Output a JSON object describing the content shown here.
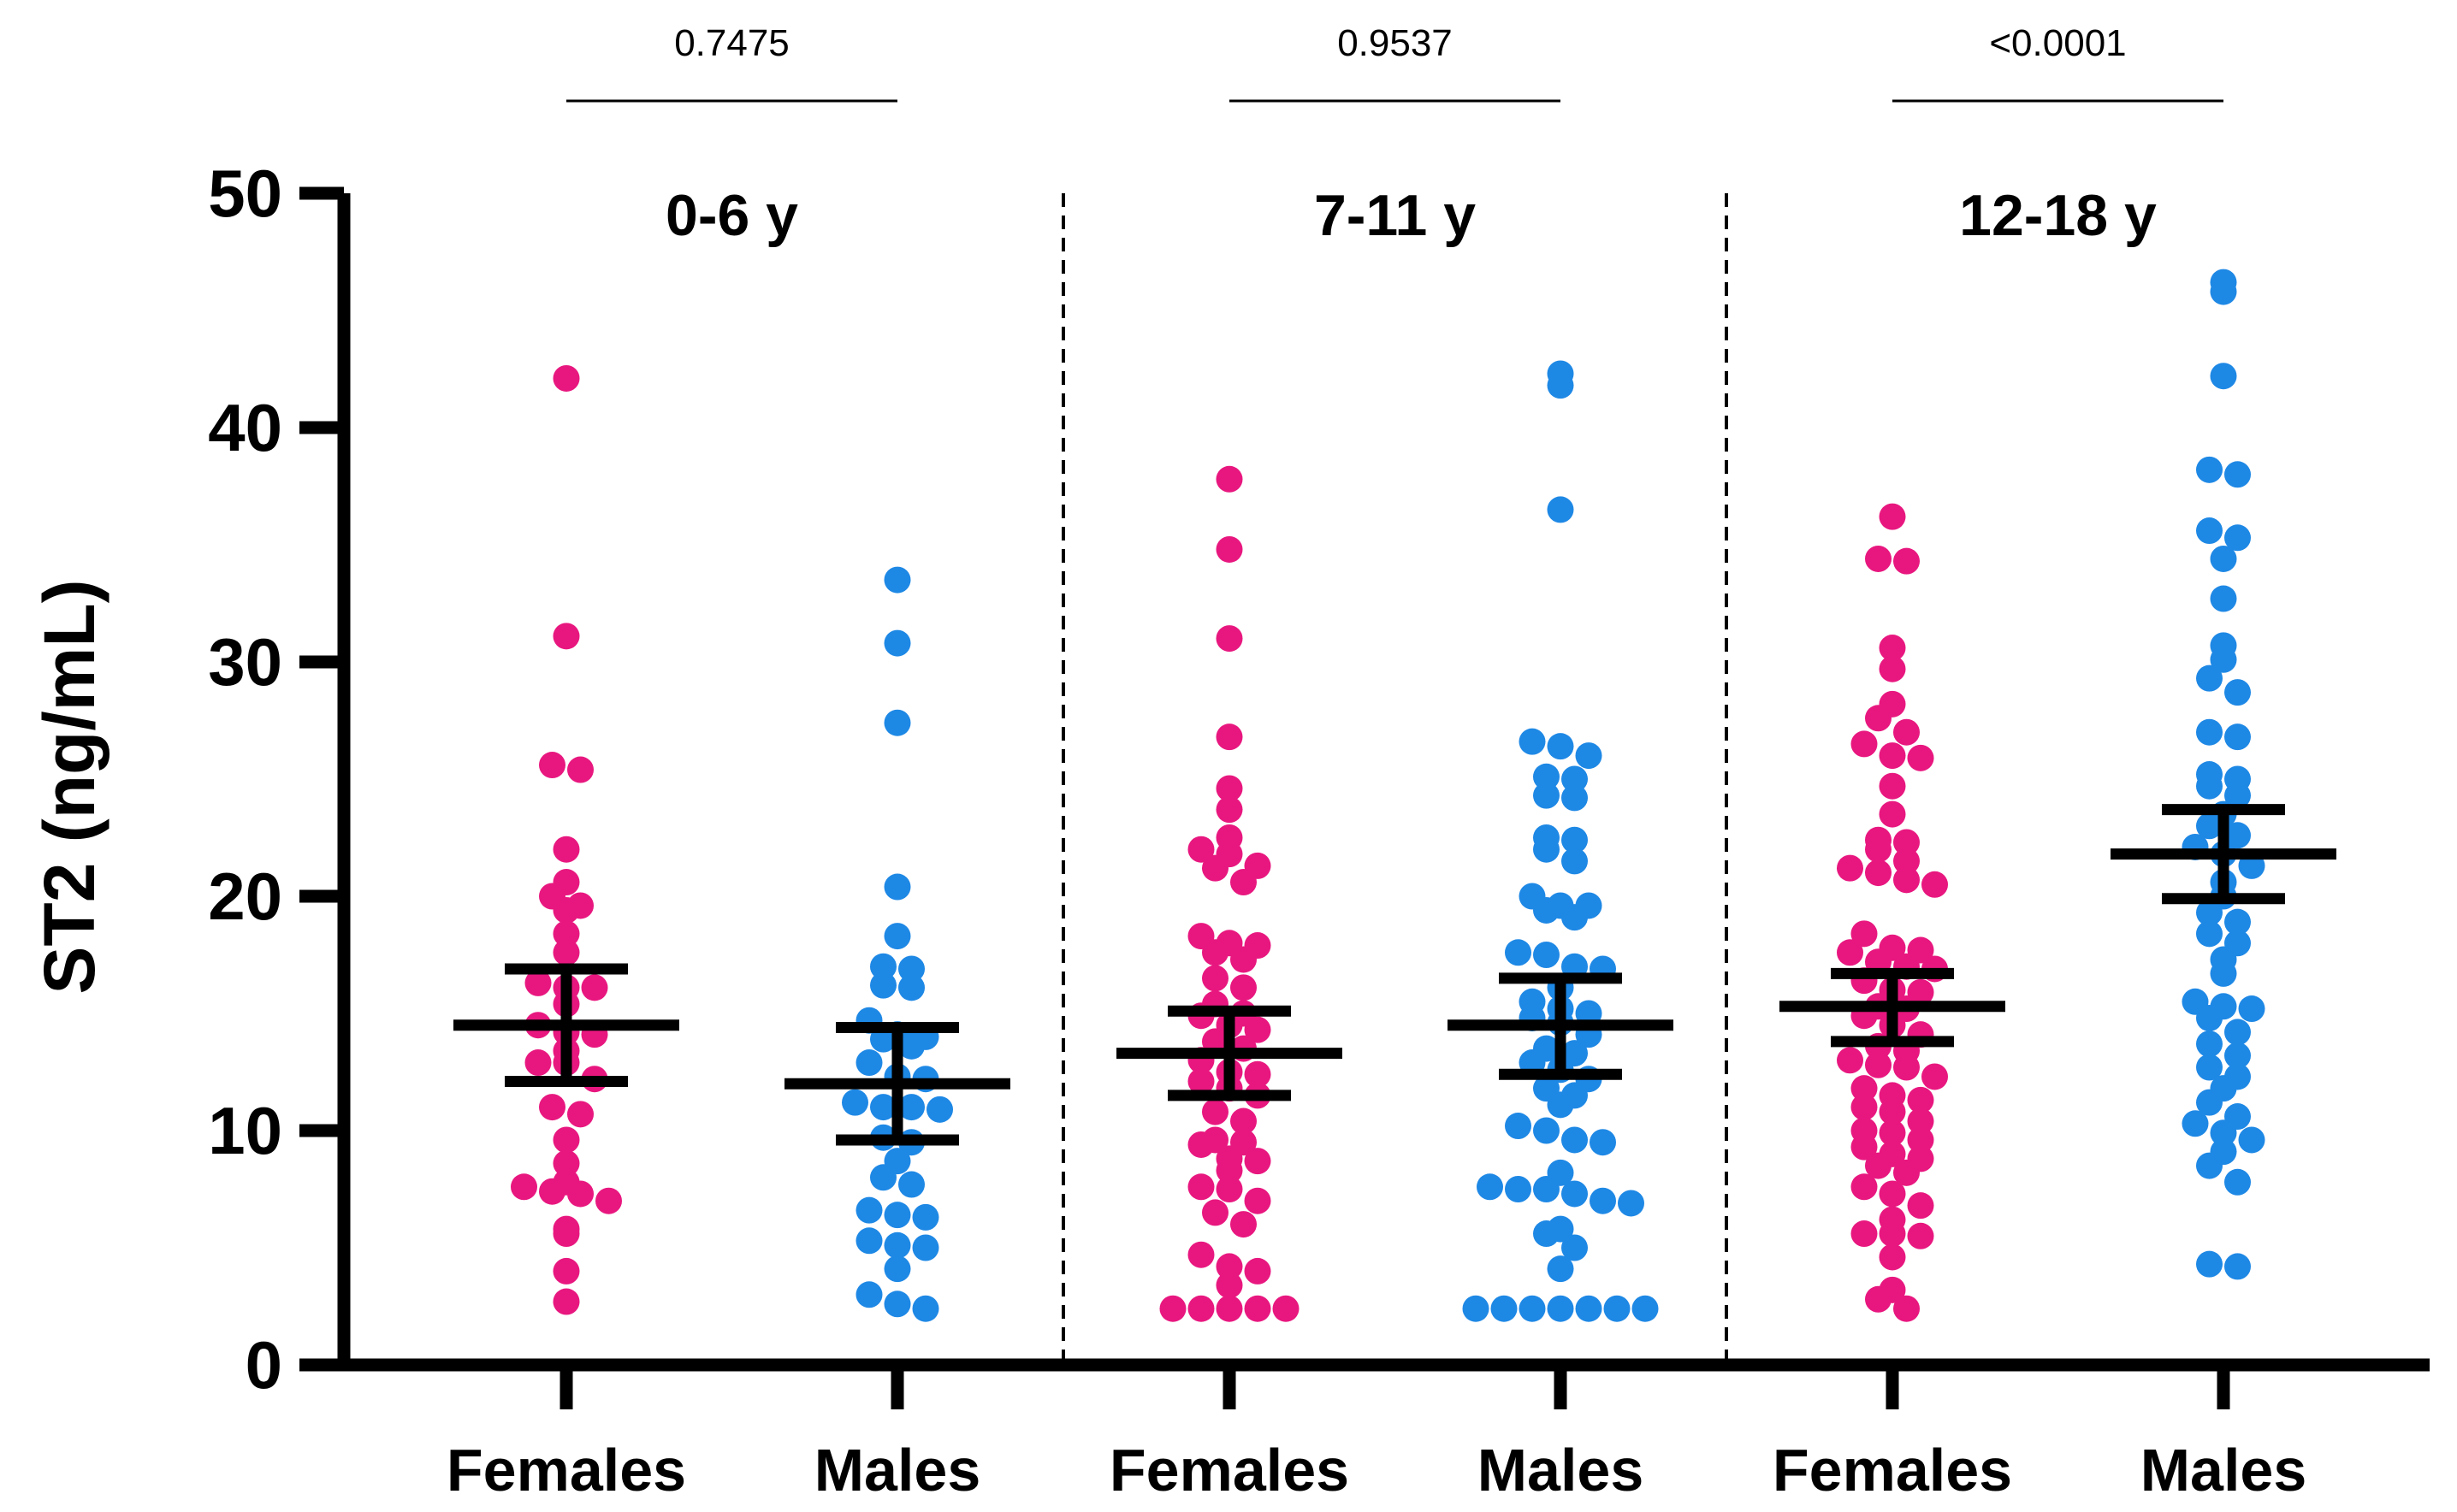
{
  "chart_data": {
    "type": "scatter",
    "subtype": "grouped dot plot with mean and 95% CI",
    "ylabel": "ST2 (ng/mL)",
    "ylim": [
      0,
      50
    ],
    "yticks": [
      0,
      10,
      20,
      30,
      40,
      50
    ],
    "groups": [
      {
        "label": "0-6 y",
        "p_value": "0.7475"
      },
      {
        "label": "7-11 y",
        "p_value": "0.9537"
      },
      {
        "label": "12-18 y",
        "p_value": "<0.0001"
      }
    ],
    "categories": [
      "Females",
      "Males",
      "Females",
      "Males",
      "Females",
      "Males"
    ],
    "colors": {
      "Females": "#E8177F",
      "Males": "#1E88E5",
      "summary": "#000000"
    },
    "series": [
      {
        "name": "Females",
        "group": "0-6 y",
        "mean": 14.5,
        "ci": [
          12.1,
          16.9
        ],
        "values": [
          42.1,
          31.1,
          25.6,
          25.4,
          22.0,
          20.6,
          20.0,
          19.6,
          19.4,
          18.4,
          17.6,
          16.3,
          16.1,
          16.1,
          15.4,
          14.5,
          14.2,
          14.1,
          13.4,
          12.9,
          12.9,
          12.2,
          11.0,
          10.7,
          9.6,
          8.6,
          7.8,
          7.6,
          7.4,
          7.3,
          7.0,
          5.8,
          5.6,
          4.0,
          2.7
        ]
      },
      {
        "name": "Males",
        "group": "0-6 y",
        "mean": 12.0,
        "ci": [
          9.6,
          14.4
        ],
        "values": [
          33.5,
          30.8,
          27.4,
          20.4,
          18.3,
          17.0,
          16.9,
          16.2,
          16.1,
          14.7,
          14.1,
          14.0,
          13.9,
          13.6,
          12.9,
          12.3,
          12.2,
          11.2,
          11.0,
          11.0,
          10.9,
          9.7,
          9.5,
          8.7,
          8.0,
          7.7,
          6.6,
          6.4,
          6.3,
          5.3,
          5.1,
          5.0,
          4.1,
          3.0,
          2.6,
          2.4
        ]
      },
      {
        "name": "Females",
        "group": "7-11 y",
        "mean": 13.3,
        "ci": [
          11.5,
          15.1
        ],
        "values": [
          37.8,
          34.8,
          31.0,
          26.8,
          24.6,
          23.7,
          22.5,
          22.0,
          21.8,
          21.3,
          21.2,
          20.6,
          18.3,
          18.0,
          17.9,
          17.6,
          17.3,
          16.5,
          16.1,
          15.4,
          15.0,
          14.9,
          14.5,
          14.3,
          13.8,
          13.5,
          13.0,
          12.5,
          12.4,
          12.1,
          11.8,
          11.5,
          10.8,
          10.4,
          9.6,
          9.5,
          9.4,
          8.8,
          8.7,
          8.3,
          7.6,
          7.5,
          7.0,
          6.5,
          6.0,
          4.7,
          4.2,
          4.0,
          3.4,
          2.4,
          2.4,
          2.4,
          2.4,
          2.4
        ]
      },
      {
        "name": "Males",
        "group": "7-11 y",
        "mean": 14.5,
        "ci": [
          12.4,
          16.5
        ],
        "values": [
          42.3,
          41.8,
          36.5,
          26.6,
          26.4,
          26.0,
          25.1,
          25.0,
          24.3,
          24.2,
          22.5,
          22.4,
          22.0,
          21.5,
          20.0,
          19.6,
          19.6,
          19.4,
          19.1,
          17.6,
          17.5,
          17.0,
          16.9,
          16.1,
          15.5,
          15.2,
          15.0,
          14.8,
          14.6,
          14.1,
          13.5,
          13.3,
          12.9,
          12.6,
          12.2,
          11.8,
          11.5,
          11.1,
          10.2,
          10.0,
          9.6,
          9.5,
          8.2,
          7.6,
          7.5,
          7.5,
          7.3,
          7.0,
          6.9,
          5.8,
          5.6,
          5.0,
          4.1,
          2.4,
          2.4,
          2.4,
          2.4,
          2.4,
          2.4,
          2.4
        ]
      },
      {
        "name": "Females",
        "group": "12-18 y",
        "mean": 15.3,
        "ci": [
          13.8,
          16.7
        ],
        "values": [
          36.2,
          34.4,
          34.3,
          30.6,
          29.7,
          28.2,
          27.6,
          27.0,
          26.5,
          26.0,
          25.9,
          24.7,
          23.5,
          22.4,
          22.3,
          22.0,
          21.5,
          21.2,
          21.0,
          20.7,
          20.5,
          18.4,
          17.8,
          17.7,
          17.6,
          17.2,
          17.0,
          16.9,
          16.4,
          16.0,
          15.9,
          15.3,
          15.2,
          14.9,
          14.5,
          14.1,
          13.6,
          13.4,
          13.0,
          12.8,
          12.7,
          12.3,
          11.8,
          11.5,
          11.3,
          11.0,
          10.8,
          10.4,
          10.0,
          9.9,
          9.6,
          9.3,
          9.0,
          8.8,
          8.5,
          8.2,
          7.6,
          7.3,
          6.8,
          6.2,
          5.6,
          5.6,
          5.5,
          4.6,
          3.2,
          2.8,
          2.4
        ]
      },
      {
        "name": "Males",
        "group": "12-18 y",
        "mean": 21.8,
        "ci": [
          19.9,
          23.7
        ],
        "values": [
          46.2,
          45.8,
          42.2,
          38.2,
          38.0,
          35.6,
          35.3,
          34.4,
          32.7,
          30.7,
          30.1,
          29.3,
          28.7,
          27.0,
          26.8,
          25.2,
          25.0,
          24.7,
          24.3,
          23.5,
          23.0,
          22.6,
          22.1,
          21.8,
          21.3,
          20.6,
          20.0,
          19.3,
          18.9,
          18.4,
          18.0,
          17.3,
          16.7,
          15.5,
          15.3,
          15.2,
          14.8,
          14.2,
          13.7,
          13.2,
          12.7,
          12.3,
          11.8,
          11.2,
          10.6,
          10.3,
          9.9,
          9.6,
          9.1,
          8.5,
          7.8,
          4.3,
          4.2
        ]
      }
    ]
  }
}
